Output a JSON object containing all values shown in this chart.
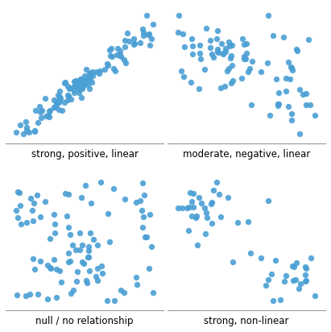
{
  "dot_color": "#4A9FD4",
  "dot_size": 28,
  "alpha": 0.9,
  "labels": [
    "strong, positive, linear",
    "moderate, negative, linear",
    "null / no relationship",
    "strong, non-linear"
  ],
  "label_fontsize": 8.5,
  "figsize": [
    4.11,
    4.12
  ],
  "dpi": 100,
  "seed": 7
}
